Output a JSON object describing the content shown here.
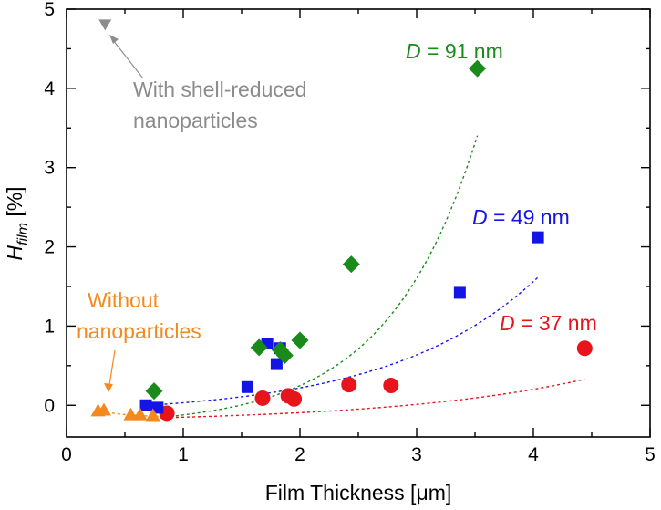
{
  "chart_data": {
    "type": "scatter",
    "xlabel": "Film Thickness [μm]",
    "ylabel_main": "H",
    "ylabel_sub": "film",
    "ylabel_unit": " [%]",
    "xlim": [
      0,
      5
    ],
    "ylim": [
      -0.4,
      5
    ],
    "x_ticks": [
      0,
      1,
      2,
      3,
      4,
      5
    ],
    "y_ticks": [
      0,
      1,
      2,
      3,
      4,
      5
    ],
    "grid": false,
    "series": [
      {
        "name": "D = 37 nm",
        "label_italic": "D",
        "label_rest": " = 37 nm",
        "color": "#e8141c",
        "marker": "circle",
        "fit_color": "#e8141c",
        "x": [
          0.86,
          1.68,
          1.9,
          1.95,
          2.42,
          2.78,
          4.44
        ],
        "y": [
          -0.1,
          0.09,
          0.12,
          0.08,
          0.26,
          0.25,
          0.72
        ],
        "fit": {
          "x0": 0.75,
          "x1": 4.44,
          "a": -0.16,
          "b": 0.06,
          "k": 0.6
        }
      },
      {
        "name": "D = 49 nm",
        "label_italic": "D",
        "label_rest": " = 49 nm",
        "color": "#1414e6",
        "marker": "square",
        "fit_color": "#1414e6",
        "x": [
          0.68,
          0.78,
          1.55,
          1.72,
          1.8,
          1.83,
          3.37,
          4.04
        ],
        "y": [
          0.0,
          -0.03,
          0.23,
          0.78,
          0.52,
          0.72,
          1.42,
          2.12
        ],
        "fit": {
          "x0": 0.7,
          "x1": 4.04,
          "a": -0.2,
          "b": 0.12,
          "k": 0.8
        }
      },
      {
        "name": "D = 91 nm",
        "label_italic": "D",
        "label_rest": " = 91 nm",
        "color": "#1a8a1a",
        "marker": "diamond",
        "fit_color": "#1a8a1a",
        "x": [
          0.75,
          1.65,
          1.83,
          1.87,
          2.0,
          2.44,
          3.52
        ],
        "y": [
          0.18,
          0.73,
          0.7,
          0.63,
          0.82,
          1.78,
          4.25
        ],
        "fit": {
          "x0": 0.75,
          "x1": 3.52,
          "a": -0.16,
          "b": 0.1,
          "k": 1.3
        }
      },
      {
        "name": "Without nanoparticles",
        "color": "#f5891e",
        "marker": "triangle-up",
        "fit_color": "#f5891e",
        "x": [
          0.27,
          0.32,
          0.55,
          0.63,
          0.74
        ],
        "y": [
          -0.07,
          -0.06,
          -0.12,
          -0.12,
          -0.13
        ],
        "fit_points": [
          [
            0.25,
            -0.07
          ],
          [
            0.45,
            -0.11
          ],
          [
            0.62,
            -0.13
          ],
          [
            0.8,
            -0.14
          ]
        ]
      },
      {
        "name": "With shell-reduced nanoparticles",
        "color": "#8c8c8c",
        "marker": "triangle-down",
        "x": [
          0.33
        ],
        "y": [
          4.8
        ]
      }
    ],
    "annotations": {
      "gray_line1": "With shell-reduced",
      "gray_line2": "nanoparticles",
      "orange_line1": "Without",
      "orange_line2": "nanoparticles",
      "gray_color": "#8c8c8c",
      "orange_color": "#f5891e"
    }
  }
}
